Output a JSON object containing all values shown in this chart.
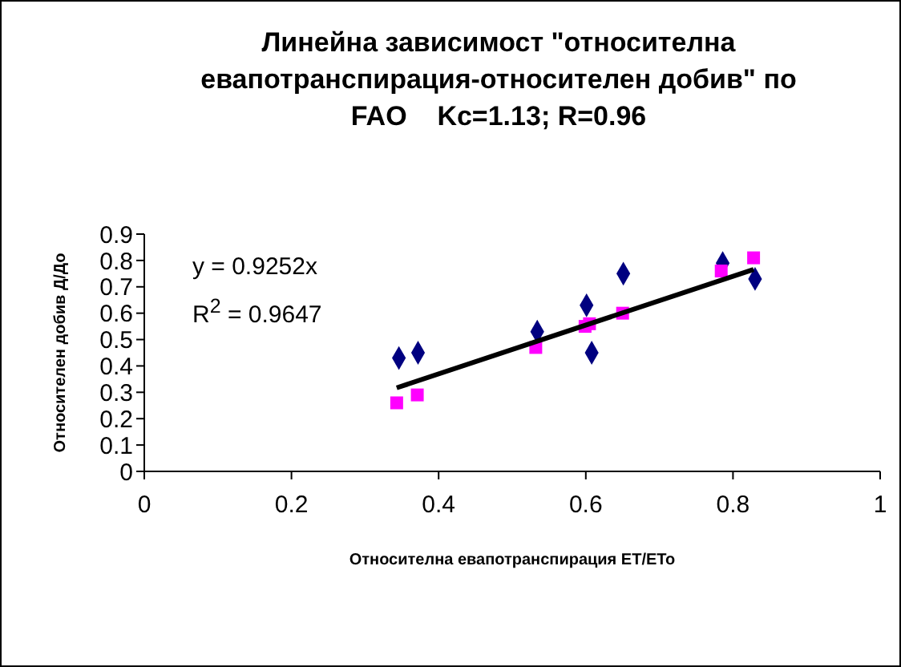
{
  "chart_data": {
    "type": "scatter",
    "title": "Линейна зависимост \"относителна евапотранспирация-относителен добив\" по FAO    Kc=1.13; R=0.96",
    "xlabel": "Относителна евапотранспирация  ET/ETo",
    "ylabel": "Относителен добив Д/До",
    "xlim": [
      0,
      1
    ],
    "xticks": [
      0,
      0.2,
      0.4,
      0.6,
      0.8,
      1
    ],
    "ylim": [
      0,
      0.9
    ],
    "yticks": [
      0,
      0.1,
      0.2,
      0.3,
      0.4,
      0.5,
      0.6,
      0.7,
      0.8,
      0.9
    ],
    "grid": false,
    "legend": false,
    "annotations": [
      "y = 0.9252x",
      "R$^{2}$ = 0.9647"
    ],
    "series": [
      {
        "marker": "diamond",
        "color": "#000080",
        "x": [
          0.346,
          0.372,
          0.534,
          0.601,
          0.608,
          0.651,
          0.786,
          0.83
        ],
        "values": [
          0.43,
          0.45,
          0.53,
          0.63,
          0.45,
          0.75,
          0.79,
          0.73
        ]
      },
      {
        "marker": "square",
        "color": "#ff00ff",
        "x": [
          0.343,
          0.371,
          0.532,
          0.599,
          0.605,
          0.65,
          0.784,
          0.828
        ],
        "values": [
          0.26,
          0.29,
          0.47,
          0.55,
          0.56,
          0.6,
          0.76,
          0.81
        ]
      },
      {
        "type": "line",
        "marker": "none",
        "line_style": "solid",
        "color": "#000000",
        "x": [
          0.343,
          0.828
        ],
        "values": [
          0.317,
          0.766
        ]
      }
    ]
  }
}
